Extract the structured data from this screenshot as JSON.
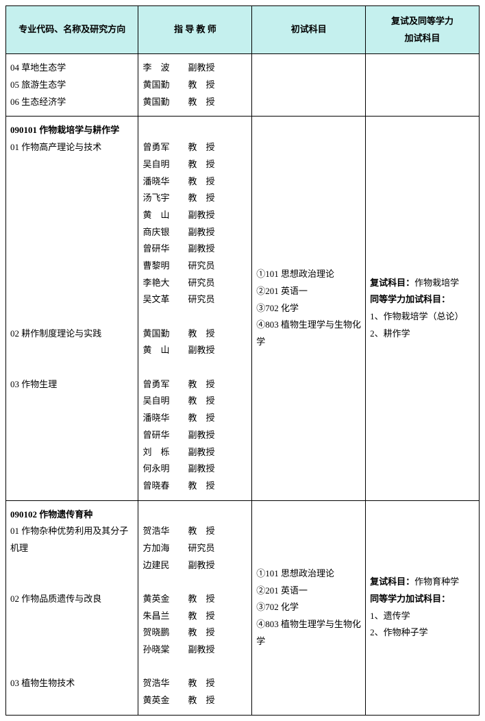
{
  "headers": {
    "col1": "专业代码、名称及研究方向",
    "col2": "指 导 教 师",
    "col3": "初试科目",
    "col4": "复试及同等学力\n加试科目"
  },
  "block1": {
    "directions": [
      {
        "code": "04",
        "name": "草地生态学",
        "teachers": [
          {
            "name": "李　波",
            "title": "副教授"
          }
        ]
      },
      {
        "code": "05",
        "name": "旅游生态学",
        "teachers": [
          {
            "name": "黄国勤",
            "title": "教　授"
          }
        ]
      },
      {
        "code": "06",
        "name": "生态经济学",
        "teachers": [
          {
            "name": "黄国勤",
            "title": "教　授"
          }
        ]
      }
    ]
  },
  "block2": {
    "major": "090101 作物栽培学与耕作学",
    "directions": [
      {
        "code": "01",
        "name": "作物高产理论与技术",
        "teachers": [
          {
            "name": "曾勇军",
            "title": "教　授"
          },
          {
            "name": "吴自明",
            "title": "教　授"
          },
          {
            "name": "潘晓华",
            "title": "教　授"
          },
          {
            "name": "汤飞宇",
            "title": "教　授"
          },
          {
            "name": "黄　山",
            "title": "副教授"
          },
          {
            "name": "商庆银",
            "title": "副教授"
          },
          {
            "name": "曾研华",
            "title": "副教授"
          },
          {
            "name": "曹黎明",
            "title": "研究员"
          },
          {
            "name": "李艳大",
            "title": "研究员"
          },
          {
            "name": "吴文革",
            "title": "研究员"
          }
        ]
      },
      {
        "code": "02",
        "name": "耕作制度理论与实践",
        "teachers": [
          {
            "name": "黄国勤",
            "title": "教　授"
          },
          {
            "name": "黄　山",
            "title": "副教授"
          }
        ]
      },
      {
        "code": "03",
        "name": "作物生理",
        "teachers": [
          {
            "name": "曾勇军",
            "title": "教　授"
          },
          {
            "name": "吴自明",
            "title": "教　授"
          },
          {
            "name": "潘晓华",
            "title": "教　授"
          },
          {
            "name": "曾研华",
            "title": "副教授"
          },
          {
            "name": "刘　栎",
            "title": "副教授"
          },
          {
            "name": "何永明",
            "title": "副教授"
          },
          {
            "name": "曾晓春",
            "title": "教　授"
          }
        ]
      }
    ],
    "exam": [
      "①101 思想政治理论",
      "②201 英语一",
      "③702 化学",
      "④803 植物生理学与生物化学"
    ],
    "retest": {
      "subject_label": "复试科目：",
      "subject": "作物栽培学",
      "equiv_label": "同等学力加试科目：",
      "items": [
        "1、作物栽培学（总论）",
        "2、耕作学"
      ]
    }
  },
  "block3": {
    "major": "090102 作物遗传育种",
    "directions": [
      {
        "code": "01",
        "name": "作物杂种优势利用及其分子机理",
        "teachers": [
          {
            "name": "贺浩华",
            "title": "教　授"
          },
          {
            "name": "方加海",
            "title": "研究员"
          },
          {
            "name": "边建民",
            "title": "副教授"
          }
        ]
      },
      {
        "code": "02",
        "name": "作物品质遗传与改良",
        "teachers": [
          {
            "name": "黄英金",
            "title": "教　授"
          },
          {
            "name": "朱昌兰",
            "title": "教　授"
          },
          {
            "name": "贺晓鹏",
            "title": "教　授"
          },
          {
            "name": "孙晓棠",
            "title": "副教授"
          }
        ]
      },
      {
        "code": "03",
        "name": "植物生物技术",
        "teachers": [
          {
            "name": "贺浩华",
            "title": "教　授"
          },
          {
            "name": "黄英金",
            "title": "教　授"
          }
        ]
      }
    ],
    "exam": [
      "①101 思想政治理论",
      "②201 英语一",
      "③702 化学",
      "④803 植物生理学与生物化学"
    ],
    "retest": {
      "subject_label": "复试科目：",
      "subject": "作物育种学",
      "equiv_label": "同等学力加试科目：",
      "items": [
        "1、遗传学",
        "2、作物种子学"
      ]
    }
  }
}
